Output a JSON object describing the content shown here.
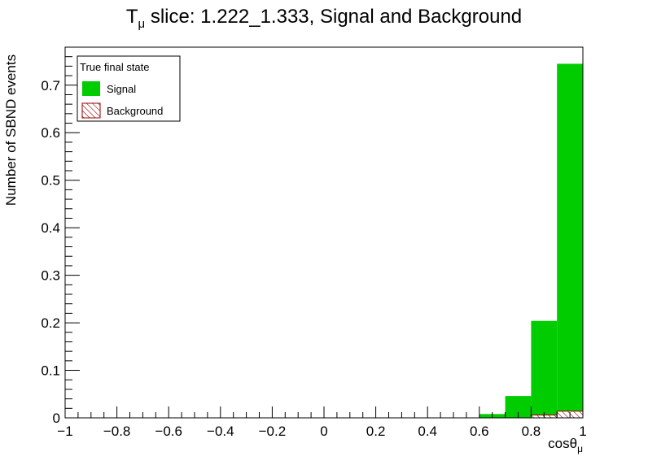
{
  "chart_data": {
    "type": "bar",
    "title_main": "T",
    "title_sub": "μ",
    "title_rest": " slice: 1.222_1.333, Signal and Background",
    "xlabel_main": "cosθ",
    "xlabel_sub": "μ",
    "ylabel": "Number of SBND events",
    "xlim": [
      -1,
      1
    ],
    "ylim": [
      0,
      0.78
    ],
    "xticks": [
      -1,
      -0.8,
      -0.6,
      -0.4,
      -0.2,
      0,
      0.2,
      0.4,
      0.6,
      0.8,
      1
    ],
    "xtick_labels": [
      "−1",
      "−0.8",
      "−0.6",
      "−0.4",
      "−0.2",
      "0",
      "0.2",
      "0.4",
      "0.6",
      "0.8",
      "1"
    ],
    "yticks": [
      0,
      0.1,
      0.2,
      0.3,
      0.4,
      0.5,
      0.6,
      0.7
    ],
    "ytick_labels": [
      "0",
      "0.1",
      "0.2",
      "0.3",
      "0.4",
      "0.5",
      "0.6",
      "0.7"
    ],
    "bin_edges": [
      0.6,
      0.7,
      0.8,
      0.9,
      1.0
    ],
    "series": [
      {
        "name": "Signal",
        "values": [
          0.008,
          0.046,
          0.204,
          0.745
        ],
        "color": "#00cc00",
        "fill": "solid"
      },
      {
        "name": "Background",
        "values": [
          0.0,
          0.0,
          0.006,
          0.014
        ],
        "color": "#990000",
        "fill": "hatch"
      }
    ],
    "legend": {
      "title": "True final state",
      "entries": [
        "Signal",
        "Background"
      ],
      "position": "top-left"
    }
  }
}
